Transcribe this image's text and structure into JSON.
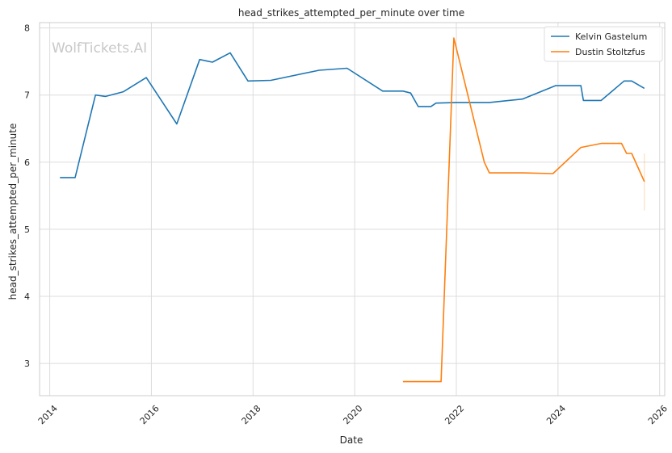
{
  "chart_data": {
    "type": "line",
    "title": "head_strikes_attempted_per_minute over time",
    "xlabel": "Date",
    "ylabel": "head_strikes_attempted_per_minute",
    "watermark": "WolfTickets.AI",
    "xlim": [
      2013.8,
      2026.1
    ],
    "ylim": [
      2.52,
      8.08
    ],
    "x_ticks": [
      {
        "value": 2014,
        "label": "2014"
      },
      {
        "value": 2016,
        "label": "2016"
      },
      {
        "value": 2018,
        "label": "2018"
      },
      {
        "value": 2020,
        "label": "2020"
      },
      {
        "value": 2022,
        "label": "2022"
      },
      {
        "value": 2024,
        "label": "2024"
      },
      {
        "value": 2026,
        "label": "2026"
      }
    ],
    "y_ticks": [
      {
        "value": 3,
        "label": "3"
      },
      {
        "value": 4,
        "label": "4"
      },
      {
        "value": 5,
        "label": "5"
      },
      {
        "value": 6,
        "label": "6"
      },
      {
        "value": 7,
        "label": "7"
      },
      {
        "value": 8,
        "label": "8"
      }
    ],
    "grid": true,
    "legend_position": "top-right",
    "series": [
      {
        "name": "Kelvin Gastelum",
        "color": "#1f77b4",
        "x": [
          2014.2,
          2014.5,
          2014.9,
          2015.1,
          2015.45,
          2015.9,
          2016.5,
          2016.95,
          2017.2,
          2017.55,
          2017.9,
          2018.35,
          2019.3,
          2019.85,
          2020.55,
          2020.95,
          2021.1,
          2021.25,
          2021.5,
          2021.6,
          2022.0,
          2022.65,
          2023.3,
          2023.95,
          2024.45,
          2024.5,
          2024.85,
          2025.3,
          2025.45,
          2025.7
        ],
        "y": [
          5.77,
          5.77,
          7.0,
          6.98,
          7.05,
          7.26,
          6.57,
          7.53,
          7.49,
          7.63,
          7.21,
          7.22,
          7.37,
          7.4,
          7.06,
          7.06,
          7.03,
          6.83,
          6.83,
          6.88,
          6.89,
          6.89,
          6.94,
          7.14,
          7.14,
          6.92,
          6.92,
          7.21,
          7.21,
          7.1
        ]
      },
      {
        "name": "Dustin Stoltzfus",
        "color": "#ff7f0e",
        "x": [
          2020.95,
          2021.7,
          2021.95,
          2022.55,
          2022.65,
          2023.3,
          2023.9,
          2024.45,
          2024.85,
          2025.25,
          2025.35,
          2025.45,
          2025.7
        ],
        "y": [
          2.73,
          2.73,
          7.85,
          6.0,
          5.84,
          5.84,
          5.83,
          6.22,
          6.28,
          6.28,
          6.13,
          6.13,
          5.71
        ]
      }
    ]
  }
}
